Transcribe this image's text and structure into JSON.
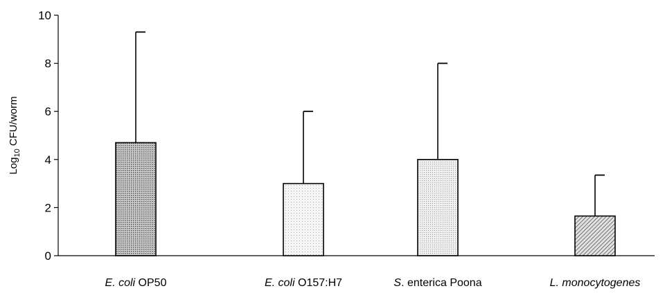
{
  "chart_data": {
    "type": "bar",
    "ylabel_parts": [
      "Log",
      "10",
      " CFU/worm"
    ],
    "ylim": [
      0,
      10
    ],
    "yticks": [
      "0",
      "2",
      "4",
      "6",
      "8",
      "10"
    ],
    "grid": false,
    "categories": [
      {
        "italic": "E. coli",
        "rest": " OP50"
      },
      {
        "italic": "E. coli",
        "rest": " O157:H7"
      },
      {
        "italic": "S",
        "rest": ". enterica Poona"
      },
      {
        "italic": "L. monocytogenes",
        "rest": ""
      }
    ],
    "values": [
      4.7,
      3.0,
      4.0,
      1.65
    ],
    "error_upper": [
      9.3,
      6.0,
      8.0,
      3.35
    ],
    "patterns": [
      "dense-dots",
      "sparse-dots",
      "fine-dots",
      "diagonal-hatch"
    ]
  }
}
